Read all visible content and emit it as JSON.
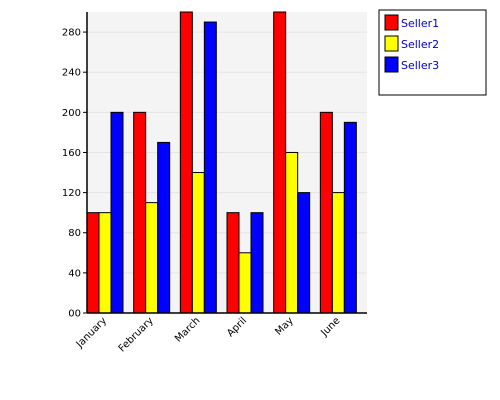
{
  "chart_data": {
    "type": "bar",
    "title": "",
    "xlabel": "",
    "ylabel": "",
    "categories": [
      "January",
      "February",
      "March",
      "April",
      "May",
      "June"
    ],
    "series": [
      {
        "name": "Seller1",
        "color": "#ff0000",
        "values": [
          100,
          200,
          300,
          100,
          300,
          200
        ]
      },
      {
        "name": "Seller2",
        "color": "#ffff00",
        "values": [
          100,
          110,
          140,
          60,
          160,
          120
        ]
      },
      {
        "name": "Seller3",
        "color": "#0000ff",
        "values": [
          200,
          170,
          290,
          100,
          120,
          190
        ]
      }
    ],
    "ylim": [
      0,
      300
    ],
    "yticks": [
      "00",
      "40",
      "80",
      "120",
      "160",
      "200",
      "240",
      "280"
    ],
    "ytick_values": [
      0,
      40,
      80,
      120,
      160,
      200,
      240,
      280
    ],
    "grid": true,
    "plot_background": "#f4f4f4",
    "grid_color": "#e4e4e4",
    "legend_placement": "top-right"
  }
}
